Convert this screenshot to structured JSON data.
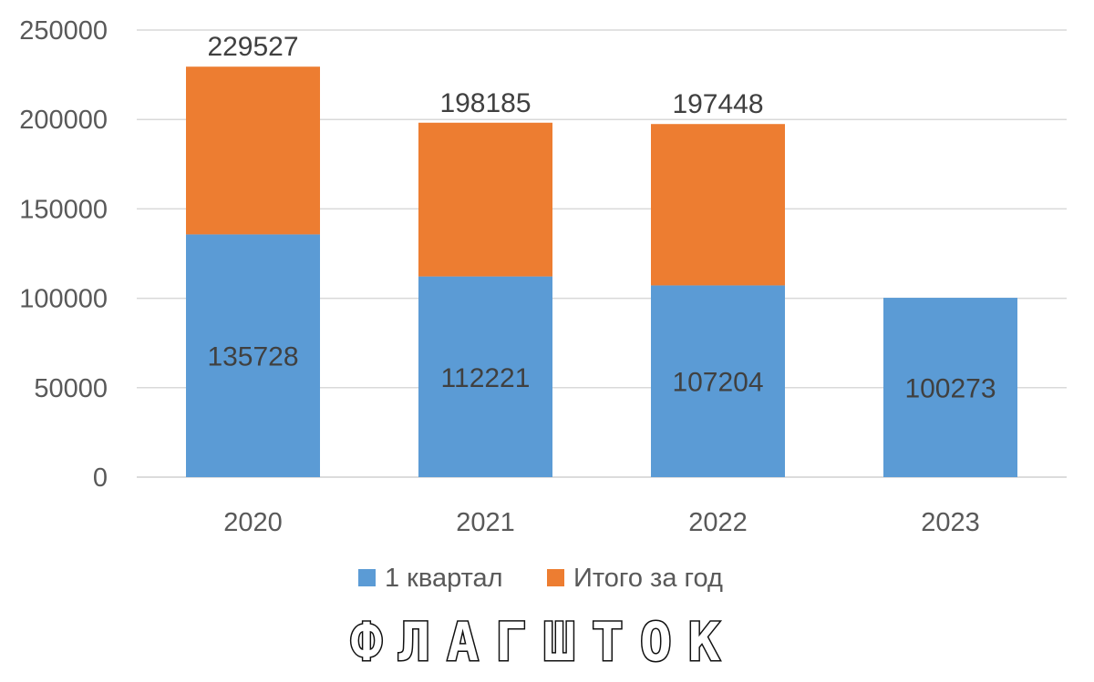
{
  "chart_data": {
    "type": "bar",
    "stacked": true,
    "categories": [
      "2020",
      "2021",
      "2022",
      "2023"
    ],
    "series": [
      {
        "name": "1 квартал",
        "values": [
          135728,
          112221,
          107204,
          100273
        ],
        "color": "#5B9BD5"
      },
      {
        "name": "Итого за год",
        "values": [
          93799,
          85964,
          90244,
          null
        ],
        "color": "#ED7D31"
      }
    ],
    "totals": [
      229527,
      198185,
      197448,
      null
    ],
    "data_labels": {
      "inside_bottom": [
        "135728",
        "112221",
        "107204",
        "100273"
      ],
      "top": [
        "229527",
        "198185",
        "197448",
        ""
      ]
    },
    "y_ticks": [
      "0",
      "50000",
      "100000",
      "150000",
      "200000",
      "250000"
    ],
    "ylim": [
      0,
      250000
    ],
    "grid": true,
    "legend_position": "bottom",
    "title": "",
    "xlabel": "",
    "ylabel": ""
  },
  "watermark": {
    "text": "ФЛАГШТОК"
  }
}
